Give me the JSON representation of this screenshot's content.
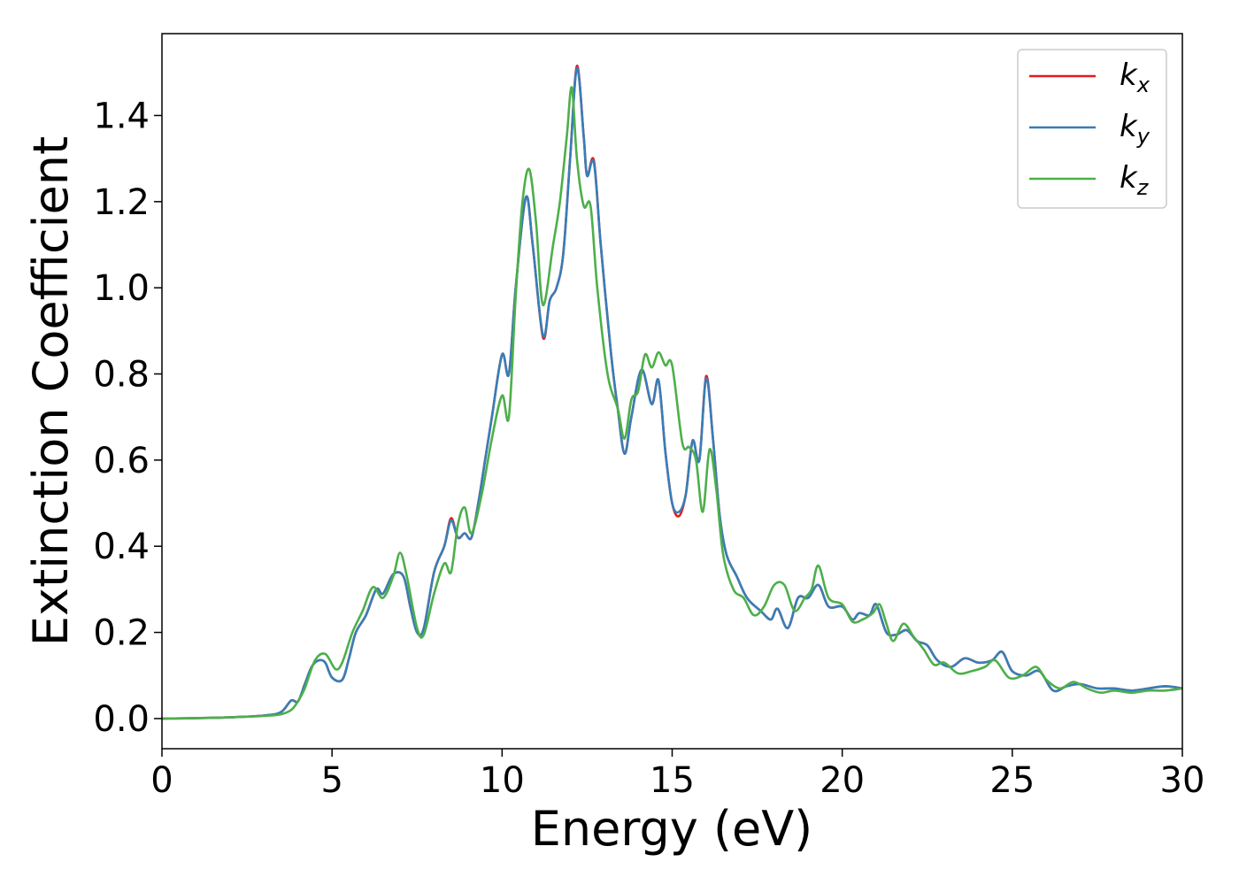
{
  "chart_data": {
    "type": "line",
    "title": "",
    "xlabel": "Energy (eV)",
    "ylabel": "Extinction Coefficient",
    "xlim": [
      0,
      30
    ],
    "ylim": [
      -0.07,
      1.59
    ],
    "xticks": [
      0,
      5,
      10,
      15,
      20,
      25,
      30
    ],
    "yticks": [
      0.0,
      0.2,
      0.4,
      0.6,
      0.8,
      1.0,
      1.2,
      1.4
    ],
    "grid": false,
    "legend_position": "top-right",
    "series": [
      {
        "name": "k",
        "sub": "x",
        "color": "#e41a1c",
        "points": [
          [
            0,
            0
          ],
          [
            1,
            0.001
          ],
          [
            2,
            0.003
          ],
          [
            3,
            0.007
          ],
          [
            3.5,
            0.015
          ],
          [
            3.8,
            0.042
          ],
          [
            4.0,
            0.04
          ],
          [
            4.2,
            0.08
          ],
          [
            4.4,
            0.12
          ],
          [
            4.6,
            0.135
          ],
          [
            4.8,
            0.13
          ],
          [
            5.0,
            0.095
          ],
          [
            5.3,
            0.09
          ],
          [
            5.5,
            0.14
          ],
          [
            5.7,
            0.2
          ],
          [
            6.0,
            0.24
          ],
          [
            6.3,
            0.3
          ],
          [
            6.5,
            0.29
          ],
          [
            6.8,
            0.335
          ],
          [
            7.1,
            0.33
          ],
          [
            7.3,
            0.26
          ],
          [
            7.5,
            0.2
          ],
          [
            7.7,
            0.21
          ],
          [
            8.0,
            0.34
          ],
          [
            8.3,
            0.4
          ],
          [
            8.5,
            0.465
          ],
          [
            8.7,
            0.42
          ],
          [
            8.9,
            0.43
          ],
          [
            9.1,
            0.42
          ],
          [
            9.3,
            0.5
          ],
          [
            9.5,
            0.6
          ],
          [
            9.7,
            0.7
          ],
          [
            10.0,
            0.845
          ],
          [
            10.2,
            0.8
          ],
          [
            10.4,
            1.0
          ],
          [
            10.7,
            1.21
          ],
          [
            10.9,
            1.1
          ],
          [
            11.2,
            0.885
          ],
          [
            11.4,
            0.97
          ],
          [
            11.6,
            1.0
          ],
          [
            11.8,
            1.08
          ],
          [
            12.0,
            1.3
          ],
          [
            12.2,
            1.515
          ],
          [
            12.4,
            1.35
          ],
          [
            12.5,
            1.26
          ],
          [
            12.7,
            1.295
          ],
          [
            12.9,
            1.1
          ],
          [
            13.2,
            0.85
          ],
          [
            13.4,
            0.72
          ],
          [
            13.6,
            0.615
          ],
          [
            13.8,
            0.7
          ],
          [
            14.1,
            0.81
          ],
          [
            14.4,
            0.73
          ],
          [
            14.6,
            0.785
          ],
          [
            14.8,
            0.62
          ],
          [
            15.0,
            0.5
          ],
          [
            15.2,
            0.47
          ],
          [
            15.4,
            0.52
          ],
          [
            15.6,
            0.645
          ],
          [
            15.8,
            0.6
          ],
          [
            16.0,
            0.795
          ],
          [
            16.2,
            0.65
          ],
          [
            16.4,
            0.47
          ],
          [
            16.6,
            0.38
          ],
          [
            16.9,
            0.33
          ],
          [
            17.2,
            0.28
          ],
          [
            17.6,
            0.25
          ],
          [
            17.9,
            0.23
          ],
          [
            18.1,
            0.255
          ],
          [
            18.4,
            0.21
          ],
          [
            18.7,
            0.28
          ],
          [
            19.0,
            0.28
          ],
          [
            19.3,
            0.31
          ],
          [
            19.6,
            0.26
          ],
          [
            20.0,
            0.26
          ],
          [
            20.3,
            0.23
          ],
          [
            20.5,
            0.245
          ],
          [
            20.8,
            0.24
          ],
          [
            21.0,
            0.265
          ],
          [
            21.3,
            0.2
          ],
          [
            21.6,
            0.195
          ],
          [
            21.9,
            0.205
          ],
          [
            22.2,
            0.18
          ],
          [
            22.5,
            0.17
          ],
          [
            22.8,
            0.135
          ],
          [
            23.2,
            0.12
          ],
          [
            23.6,
            0.14
          ],
          [
            24.0,
            0.13
          ],
          [
            24.4,
            0.135
          ],
          [
            24.7,
            0.155
          ],
          [
            25.0,
            0.11
          ],
          [
            25.4,
            0.1
          ],
          [
            25.8,
            0.11
          ],
          [
            26.2,
            0.065
          ],
          [
            26.6,
            0.075
          ],
          [
            27.0,
            0.08
          ],
          [
            27.5,
            0.07
          ],
          [
            28.0,
            0.07
          ],
          [
            28.5,
            0.065
          ],
          [
            29.0,
            0.07
          ],
          [
            29.5,
            0.075
          ],
          [
            30.0,
            0.07
          ]
        ]
      },
      {
        "name": "k",
        "sub": "y",
        "color": "#377eb8",
        "points": [
          [
            0,
            0
          ],
          [
            1,
            0.001
          ],
          [
            2,
            0.003
          ],
          [
            3,
            0.007
          ],
          [
            3.5,
            0.015
          ],
          [
            3.8,
            0.042
          ],
          [
            4.0,
            0.04
          ],
          [
            4.2,
            0.08
          ],
          [
            4.4,
            0.12
          ],
          [
            4.6,
            0.135
          ],
          [
            4.8,
            0.13
          ],
          [
            5.0,
            0.095
          ],
          [
            5.3,
            0.09
          ],
          [
            5.5,
            0.14
          ],
          [
            5.7,
            0.2
          ],
          [
            6.0,
            0.24
          ],
          [
            6.3,
            0.3
          ],
          [
            6.5,
            0.29
          ],
          [
            6.8,
            0.335
          ],
          [
            7.1,
            0.33
          ],
          [
            7.3,
            0.26
          ],
          [
            7.5,
            0.2
          ],
          [
            7.7,
            0.21
          ],
          [
            8.0,
            0.34
          ],
          [
            8.3,
            0.4
          ],
          [
            8.5,
            0.46
          ],
          [
            8.7,
            0.42
          ],
          [
            8.9,
            0.43
          ],
          [
            9.1,
            0.42
          ],
          [
            9.3,
            0.5
          ],
          [
            9.5,
            0.6
          ],
          [
            9.7,
            0.7
          ],
          [
            10.0,
            0.845
          ],
          [
            10.2,
            0.8
          ],
          [
            10.4,
            1.0
          ],
          [
            10.7,
            1.21
          ],
          [
            10.9,
            1.1
          ],
          [
            11.2,
            0.89
          ],
          [
            11.4,
            0.97
          ],
          [
            11.6,
            1.0
          ],
          [
            11.8,
            1.08
          ],
          [
            12.0,
            1.3
          ],
          [
            12.2,
            1.51
          ],
          [
            12.4,
            1.35
          ],
          [
            12.5,
            1.26
          ],
          [
            12.7,
            1.29
          ],
          [
            12.9,
            1.1
          ],
          [
            13.2,
            0.85
          ],
          [
            13.4,
            0.72
          ],
          [
            13.6,
            0.615
          ],
          [
            13.8,
            0.7
          ],
          [
            14.1,
            0.81
          ],
          [
            14.4,
            0.73
          ],
          [
            14.6,
            0.785
          ],
          [
            14.8,
            0.62
          ],
          [
            15.0,
            0.5
          ],
          [
            15.2,
            0.48
          ],
          [
            15.4,
            0.52
          ],
          [
            15.6,
            0.645
          ],
          [
            15.8,
            0.6
          ],
          [
            16.0,
            0.79
          ],
          [
            16.2,
            0.65
          ],
          [
            16.4,
            0.47
          ],
          [
            16.6,
            0.38
          ],
          [
            16.9,
            0.33
          ],
          [
            17.2,
            0.28
          ],
          [
            17.6,
            0.25
          ],
          [
            17.9,
            0.23
          ],
          [
            18.1,
            0.255
          ],
          [
            18.4,
            0.21
          ],
          [
            18.7,
            0.28
          ],
          [
            19.0,
            0.28
          ],
          [
            19.3,
            0.31
          ],
          [
            19.6,
            0.26
          ],
          [
            20.0,
            0.26
          ],
          [
            20.3,
            0.23
          ],
          [
            20.5,
            0.245
          ],
          [
            20.8,
            0.24
          ],
          [
            21.0,
            0.265
          ],
          [
            21.3,
            0.2
          ],
          [
            21.6,
            0.195
          ],
          [
            21.9,
            0.205
          ],
          [
            22.2,
            0.18
          ],
          [
            22.5,
            0.17
          ],
          [
            22.8,
            0.135
          ],
          [
            23.2,
            0.12
          ],
          [
            23.6,
            0.14
          ],
          [
            24.0,
            0.13
          ],
          [
            24.4,
            0.135
          ],
          [
            24.7,
            0.155
          ],
          [
            25.0,
            0.11
          ],
          [
            25.4,
            0.1
          ],
          [
            25.8,
            0.11
          ],
          [
            26.2,
            0.065
          ],
          [
            26.6,
            0.075
          ],
          [
            27.0,
            0.08
          ],
          [
            27.5,
            0.07
          ],
          [
            28.0,
            0.07
          ],
          [
            28.5,
            0.065
          ],
          [
            29.0,
            0.07
          ],
          [
            29.5,
            0.075
          ],
          [
            30.0,
            0.07
          ]
        ]
      },
      {
        "name": "k",
        "sub": "z",
        "color": "#4daf4a",
        "points": [
          [
            0,
            0
          ],
          [
            1,
            0.001
          ],
          [
            2,
            0.003
          ],
          [
            3,
            0.006
          ],
          [
            3.5,
            0.01
          ],
          [
            3.8,
            0.02
          ],
          [
            4.0,
            0.04
          ],
          [
            4.2,
            0.07
          ],
          [
            4.5,
            0.135
          ],
          [
            4.8,
            0.15
          ],
          [
            5.1,
            0.115
          ],
          [
            5.3,
            0.13
          ],
          [
            5.6,
            0.2
          ],
          [
            5.9,
            0.25
          ],
          [
            6.2,
            0.305
          ],
          [
            6.5,
            0.28
          ],
          [
            6.8,
            0.33
          ],
          [
            7.0,
            0.385
          ],
          [
            7.2,
            0.33
          ],
          [
            7.5,
            0.21
          ],
          [
            7.7,
            0.195
          ],
          [
            8.0,
            0.29
          ],
          [
            8.3,
            0.36
          ],
          [
            8.5,
            0.34
          ],
          [
            8.7,
            0.45
          ],
          [
            8.9,
            0.49
          ],
          [
            9.1,
            0.43
          ],
          [
            9.4,
            0.52
          ],
          [
            9.7,
            0.65
          ],
          [
            10.0,
            0.75
          ],
          [
            10.2,
            0.7
          ],
          [
            10.4,
            0.98
          ],
          [
            10.6,
            1.2
          ],
          [
            10.8,
            1.275
          ],
          [
            11.0,
            1.15
          ],
          [
            11.2,
            0.96
          ],
          [
            11.5,
            1.1
          ],
          [
            11.7,
            1.2
          ],
          [
            11.9,
            1.35
          ],
          [
            12.05,
            1.465
          ],
          [
            12.2,
            1.3
          ],
          [
            12.4,
            1.19
          ],
          [
            12.6,
            1.19
          ],
          [
            12.8,
            1.0
          ],
          [
            13.1,
            0.8
          ],
          [
            13.4,
            0.72
          ],
          [
            13.6,
            0.65
          ],
          [
            13.8,
            0.74
          ],
          [
            14.0,
            0.76
          ],
          [
            14.2,
            0.845
          ],
          [
            14.4,
            0.815
          ],
          [
            14.6,
            0.85
          ],
          [
            14.8,
            0.82
          ],
          [
            15.0,
            0.82
          ],
          [
            15.3,
            0.64
          ],
          [
            15.5,
            0.63
          ],
          [
            15.7,
            0.6
          ],
          [
            15.9,
            0.48
          ],
          [
            16.1,
            0.625
          ],
          [
            16.3,
            0.53
          ],
          [
            16.5,
            0.38
          ],
          [
            16.8,
            0.3
          ],
          [
            17.1,
            0.28
          ],
          [
            17.4,
            0.24
          ],
          [
            17.7,
            0.26
          ],
          [
            18.0,
            0.31
          ],
          [
            18.3,
            0.31
          ],
          [
            18.6,
            0.25
          ],
          [
            18.9,
            0.28
          ],
          [
            19.1,
            0.3
          ],
          [
            19.3,
            0.355
          ],
          [
            19.6,
            0.28
          ],
          [
            20.0,
            0.265
          ],
          [
            20.3,
            0.225
          ],
          [
            20.6,
            0.23
          ],
          [
            20.9,
            0.245
          ],
          [
            21.1,
            0.265
          ],
          [
            21.3,
            0.22
          ],
          [
            21.5,
            0.18
          ],
          [
            21.8,
            0.22
          ],
          [
            22.1,
            0.19
          ],
          [
            22.4,
            0.16
          ],
          [
            22.7,
            0.125
          ],
          [
            23.0,
            0.13
          ],
          [
            23.4,
            0.105
          ],
          [
            23.8,
            0.11
          ],
          [
            24.2,
            0.12
          ],
          [
            24.5,
            0.135
          ],
          [
            24.9,
            0.095
          ],
          [
            25.3,
            0.1
          ],
          [
            25.7,
            0.12
          ],
          [
            26.0,
            0.09
          ],
          [
            26.4,
            0.07
          ],
          [
            26.8,
            0.085
          ],
          [
            27.2,
            0.07
          ],
          [
            27.6,
            0.06
          ],
          [
            28.0,
            0.065
          ],
          [
            28.5,
            0.06
          ],
          [
            29.0,
            0.065
          ],
          [
            29.5,
            0.065
          ],
          [
            30.0,
            0.07
          ]
        ]
      }
    ]
  }
}
